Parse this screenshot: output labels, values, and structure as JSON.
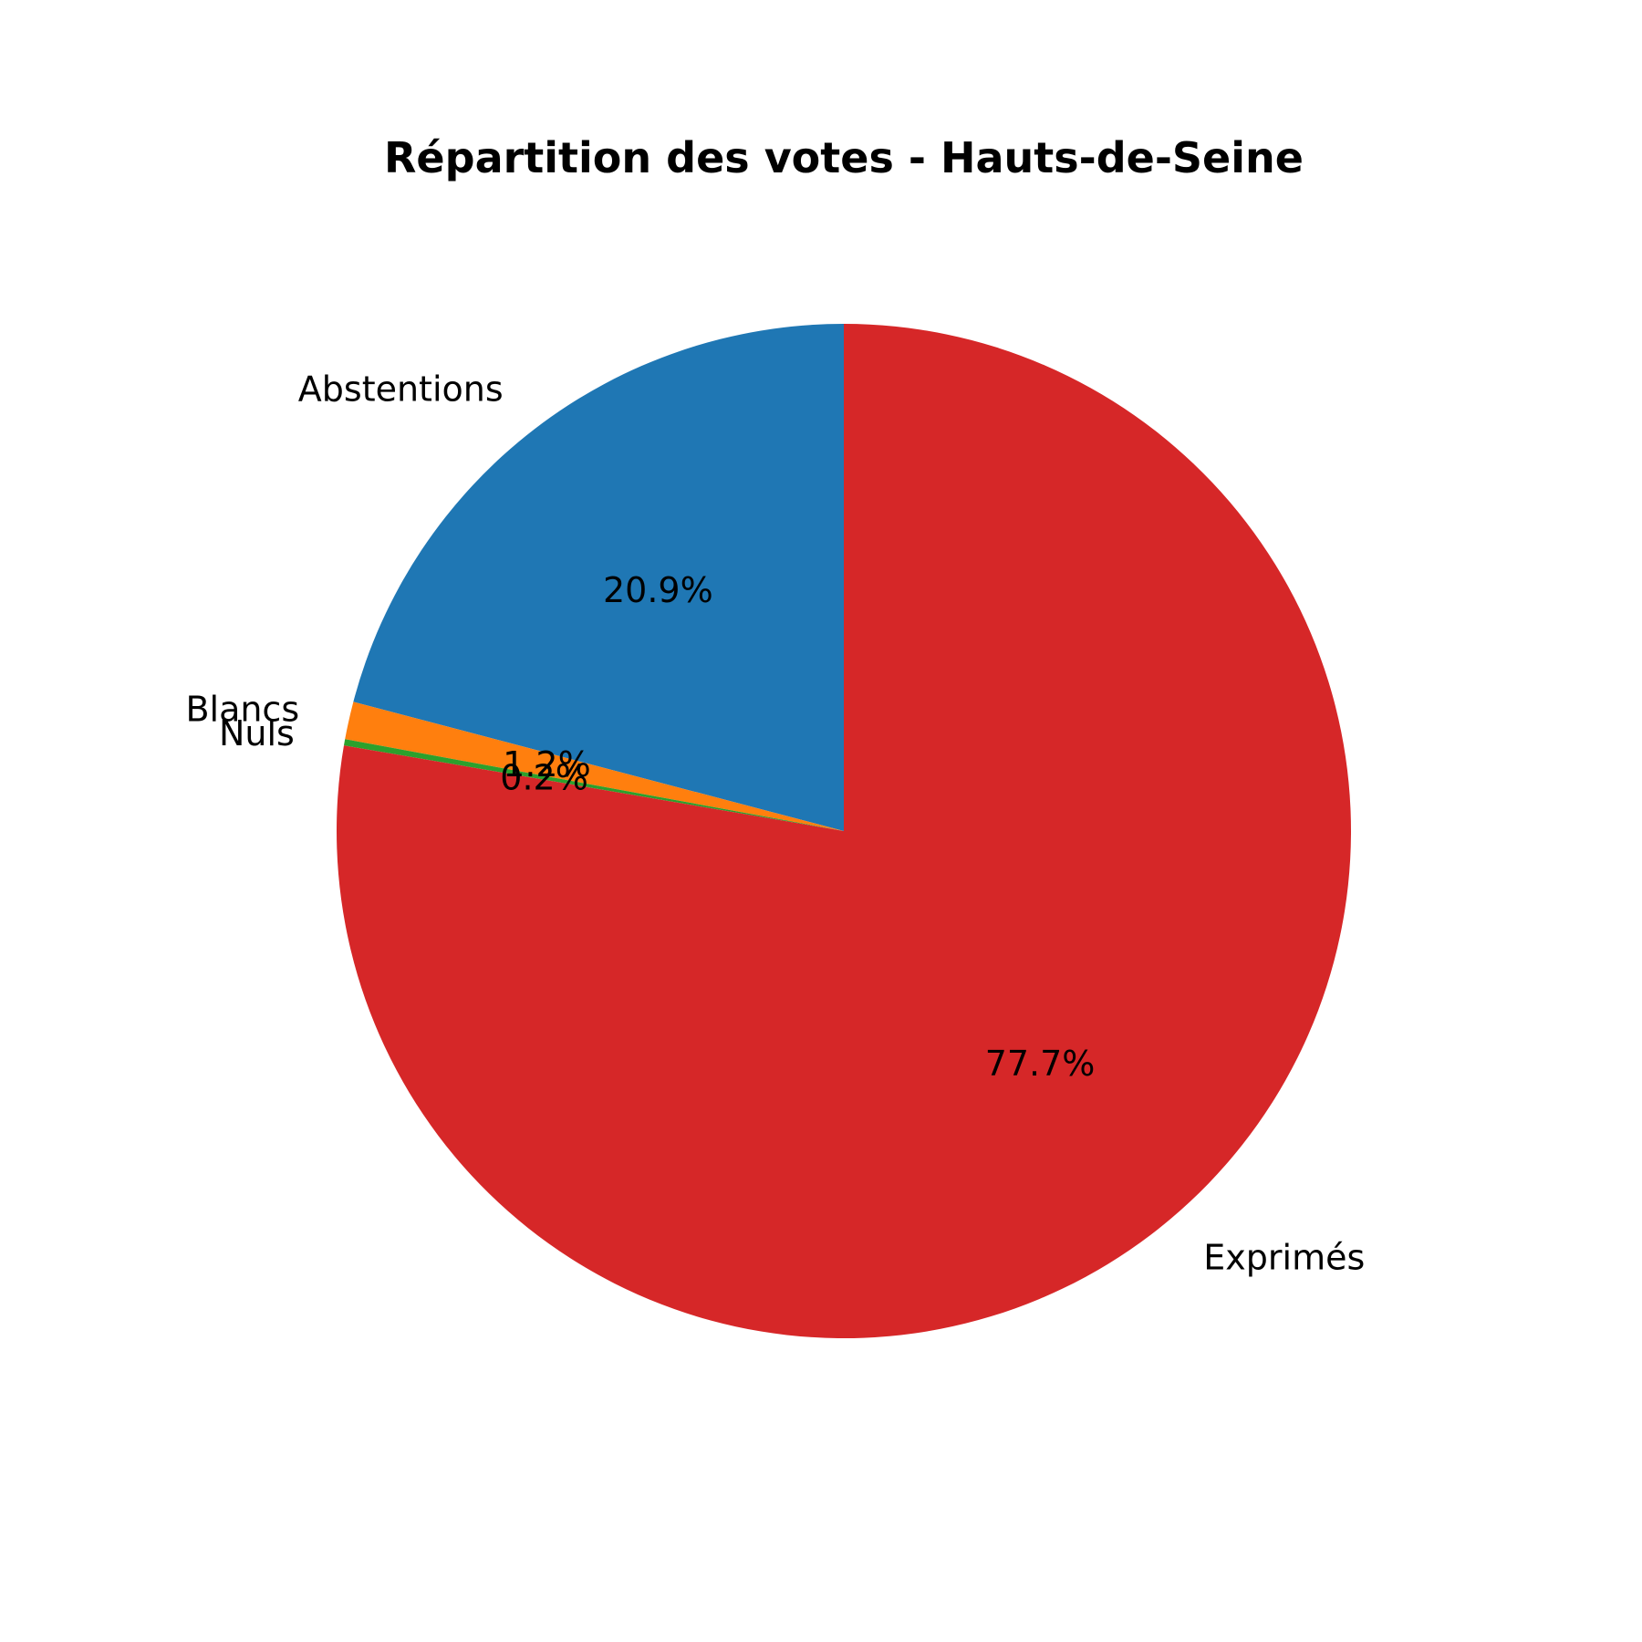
{
  "chart_data": {
    "type": "pie",
    "title": "Répartition des votes - Hauts-de-Seine",
    "labels": [
      "Abstentions",
      "Blancs",
      "Nuls",
      "Exprimés"
    ],
    "values": [
      20.9,
      1.2,
      0.2,
      77.7
    ],
    "percent_labels": [
      "20.9%",
      "1.2%",
      "0.2%",
      "77.7%"
    ],
    "colors": [
      "#1f77b4",
      "#ff7f0e",
      "#2ca02c",
      "#d62728"
    ],
    "start_angle_deg": 90,
    "direction": "counterclockwise",
    "legend": "none"
  }
}
